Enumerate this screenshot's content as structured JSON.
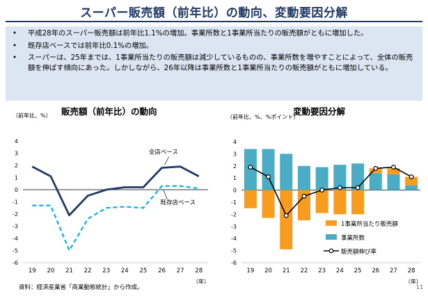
{
  "header": {
    "title": "スーパー販売額（前年比）の動向、変動要因分解"
  },
  "summary": [
    "平成28年のスーパー販売額は前年比1.1%の増加。事業所数と1事業所当たりの販売額がともに増加した。",
    "既存店ベースでは前年比0.1%の増加。",
    "スーパーは、25年までは、1事業所当たりの販売額は減少しているものの、事業所数を増やすことによって、全体の販売額を伸ばす傾向にあった。しかしながら、26年以降は事業所数と1事業所当たりの販売額がともに増加している。"
  ],
  "footer": {
    "source": "資料：経済産業省「商業動態統計」から作成。",
    "page_number": "11"
  },
  "colors": {
    "title": "#1f3864",
    "line": "#1f3864",
    "dashed": "#00b0f0",
    "bar_count": "#4bacc6",
    "bar_per": "#f79c1e"
  },
  "chart_data": [
    {
      "type": "line",
      "title": "販売額（前年比）の動向",
      "ylabel": "（前年比、%）",
      "xlabel": "（年）",
      "categories": [
        "19",
        "20",
        "21",
        "22",
        "23",
        "24",
        "25",
        "26",
        "27",
        "28"
      ],
      "ylim": [
        -6,
        4
      ],
      "yticks": [
        "4",
        "3",
        "2",
        "1",
        "0",
        "-1",
        "-2",
        "-3",
        "-4",
        "-5",
        "-6"
      ],
      "series": [
        {
          "name": "全店ベース",
          "style": "solid",
          "values": [
            1.9,
            1.1,
            -2.1,
            -0.5,
            0.0,
            0.2,
            0.2,
            1.8,
            1.9,
            1.1
          ]
        },
        {
          "name": "既存店ベース",
          "style": "dashed",
          "values": [
            -1.3,
            -1.3,
            -5.0,
            -2.4,
            -1.5,
            -1.4,
            -1.5,
            0.3,
            0.3,
            0.1
          ]
        }
      ]
    },
    {
      "type": "bar",
      "stacked": true,
      "title": "変動要因分解",
      "ylabel": "（前年比、%、%ポイント）",
      "xlabel": "（年）",
      "categories": [
        "19",
        "20",
        "21",
        "22",
        "23",
        "24",
        "25",
        "26",
        "27",
        "28"
      ],
      "ylim": [
        -6,
        4
      ],
      "yticks": [
        "4",
        "3",
        "2",
        "1",
        "0",
        "-1",
        "-2",
        "-3",
        "-4",
        "-5",
        "-6"
      ],
      "legend_position": "bottom-right",
      "series": [
        {
          "name": "1事業所当たり販売額",
          "values": [
            -1.5,
            -2.3,
            -4.9,
            -2.5,
            -1.9,
            -2.0,
            -2.0,
            0.4,
            0.5,
            0.7
          ]
        },
        {
          "name": "事業所数",
          "values": [
            3.4,
            3.4,
            3.0,
            2.0,
            1.9,
            2.1,
            2.2,
            1.4,
            1.3,
            0.4
          ]
        },
        {
          "name": "販売額伸び率",
          "type": "line",
          "values": [
            1.9,
            1.1,
            -2.1,
            -0.5,
            0.0,
            0.2,
            0.2,
            1.8,
            1.9,
            1.1
          ]
        }
      ]
    }
  ]
}
